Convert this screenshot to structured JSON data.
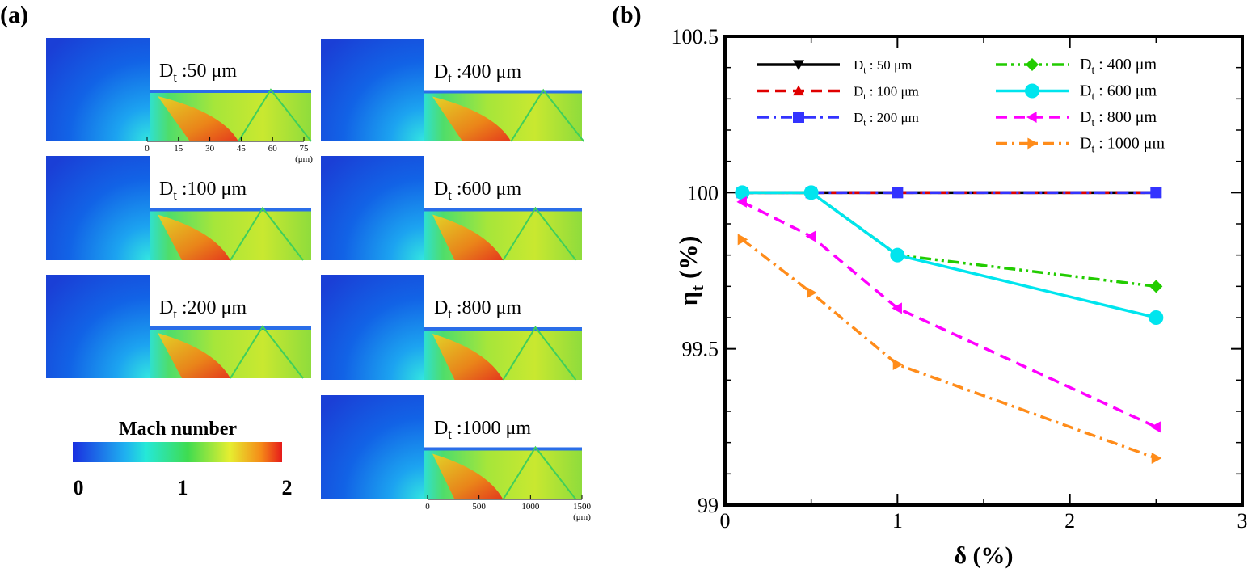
{
  "panel_a": {
    "label": "(a)",
    "contours": [
      {
        "label": "Dt :50 μm"
      },
      {
        "label": "Dt :100 μm"
      },
      {
        "label": "Dt :200 μm"
      },
      {
        "label": "Dt :400 μm"
      },
      {
        "label": "Dt :600 μm"
      },
      {
        "label": "Dt :800 μm"
      },
      {
        "label": "Dt :1000 μm"
      }
    ],
    "scale_small": {
      "ticks": [
        0,
        15,
        30,
        45,
        60,
        75
      ],
      "unit": "(μm)"
    },
    "scale_large": {
      "ticks": [
        0,
        500,
        1000,
        1500
      ],
      "unit": "(μm)"
    },
    "colorbar": {
      "title": "Mach number",
      "ticks": [
        0,
        1,
        2
      ]
    }
  },
  "chart_data": {
    "type": "line",
    "panel_label": "(b)",
    "x_label": "δ (%)",
    "y_label": "ηt (%)",
    "x": [
      0.1,
      0.5,
      1,
      2.5
    ],
    "xlim": [
      0,
      3
    ],
    "xticks": [
      0,
      1,
      2,
      3
    ],
    "xminorticks": [
      0.5,
      1.5,
      2.5
    ],
    "ylim": [
      99,
      100.5
    ],
    "yticks": [
      99,
      99.5,
      100,
      100.5
    ],
    "yminorticks": [
      99.1,
      99.2,
      99.3,
      99.4,
      99.6,
      99.7,
      99.8,
      99.9,
      100.1,
      100.2,
      100.3,
      100.4
    ],
    "series": [
      {
        "name": "Dt : 50 μm",
        "color": "#000000",
        "marker": "triangle-down",
        "dash": "solid",
        "values": [
          100,
          100,
          100,
          100
        ]
      },
      {
        "name": "Dt : 100 μm",
        "color": "#e00000",
        "marker": "triangle-up",
        "dash": "dashed",
        "values": [
          100,
          100,
          100,
          100
        ]
      },
      {
        "name": "Dt : 200 μm",
        "color": "#3333ff",
        "marker": "square",
        "dash": "dash-dot",
        "values": [
          100,
          100,
          100,
          100
        ]
      },
      {
        "name": "Dt : 400 μm",
        "color": "#22cc00",
        "marker": "diamond",
        "dash": "dash-dot-dot",
        "values": [
          100,
          100,
          99.8,
          99.7
        ]
      },
      {
        "name": "Dt : 600 μm",
        "color": "#00e5ee",
        "marker": "circle",
        "dash": "solid",
        "values": [
          100,
          100,
          99.8,
          99.6
        ]
      },
      {
        "name": "Dt : 800 μm",
        "color": "#ff00ff",
        "marker": "triangle-left",
        "dash": "dashed",
        "values": [
          99.97,
          99.86,
          99.63,
          99.25
        ]
      },
      {
        "name": "Dt : 1000 μm",
        "color": "#ff8c1a",
        "marker": "triangle-right",
        "dash": "dash-dot",
        "values": [
          99.85,
          99.68,
          99.45,
          99.15
        ]
      }
    ]
  }
}
